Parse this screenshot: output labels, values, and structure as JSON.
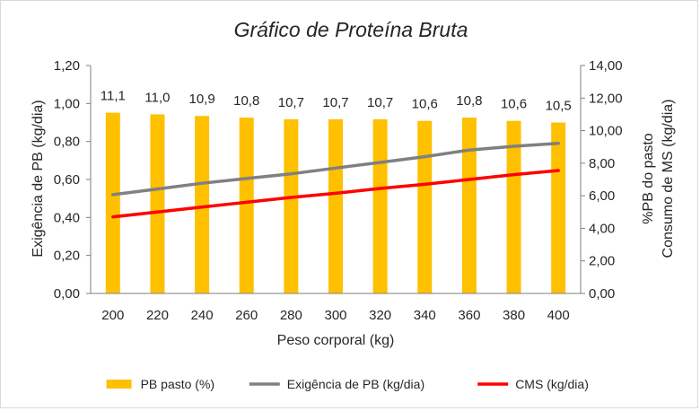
{
  "chart_data": {
    "type": "bar",
    "title": "Gráfico de Proteína Bruta",
    "xlabel": "Peso corporal (kg)",
    "ylabel_left": "Exigência de PB (kg/dia)",
    "ylabel_right_line1": "%PB do pasto",
    "ylabel_right_line2": "Consumo de MS (kg/dia)",
    "categories": [
      "200",
      "220",
      "240",
      "260",
      "280",
      "300",
      "320",
      "340",
      "360",
      "380",
      "400"
    ],
    "y_left": {
      "min": 0,
      "max": 1.2,
      "step": 0.2,
      "tick_labels": [
        "0,00",
        "0,20",
        "0,40",
        "0,60",
        "0,80",
        "1,00",
        "1,20"
      ]
    },
    "y_right": {
      "min": 0,
      "max": 14,
      "step": 2,
      "tick_labels": [
        "0,00",
        "2,00",
        "4,00",
        "6,00",
        "8,00",
        "10,00",
        "12,00",
        "14,00"
      ]
    },
    "grid": false,
    "legend_position": "bottom",
    "series": [
      {
        "name": "PB pasto (%)",
        "kind": "bar",
        "axis": "right",
        "color": "#FFC000",
        "values": [
          11.1,
          11.0,
          10.9,
          10.8,
          10.7,
          10.7,
          10.7,
          10.6,
          10.8,
          10.6,
          10.5
        ],
        "labels": [
          "11,1",
          "11,0",
          "10,9",
          "10,8",
          "10,7",
          "10,7",
          "10,7",
          "10,6",
          "10,8",
          "10,6",
          "10,5"
        ]
      },
      {
        "name": "Exigência de PB (kg/dia)",
        "kind": "line",
        "axis": "left",
        "color": "#808080",
        "values": [
          0.52,
          0.55,
          0.58,
          0.605,
          0.63,
          0.66,
          0.69,
          0.72,
          0.755,
          0.775,
          0.79
        ]
      },
      {
        "name": "CMS (kg/dia)",
        "kind": "line",
        "axis": "right",
        "color": "#FF0000",
        "values": [
          4.7,
          5.0,
          5.3,
          5.6,
          5.9,
          6.15,
          6.45,
          6.7,
          7.0,
          7.3,
          7.55
        ]
      }
    ]
  }
}
